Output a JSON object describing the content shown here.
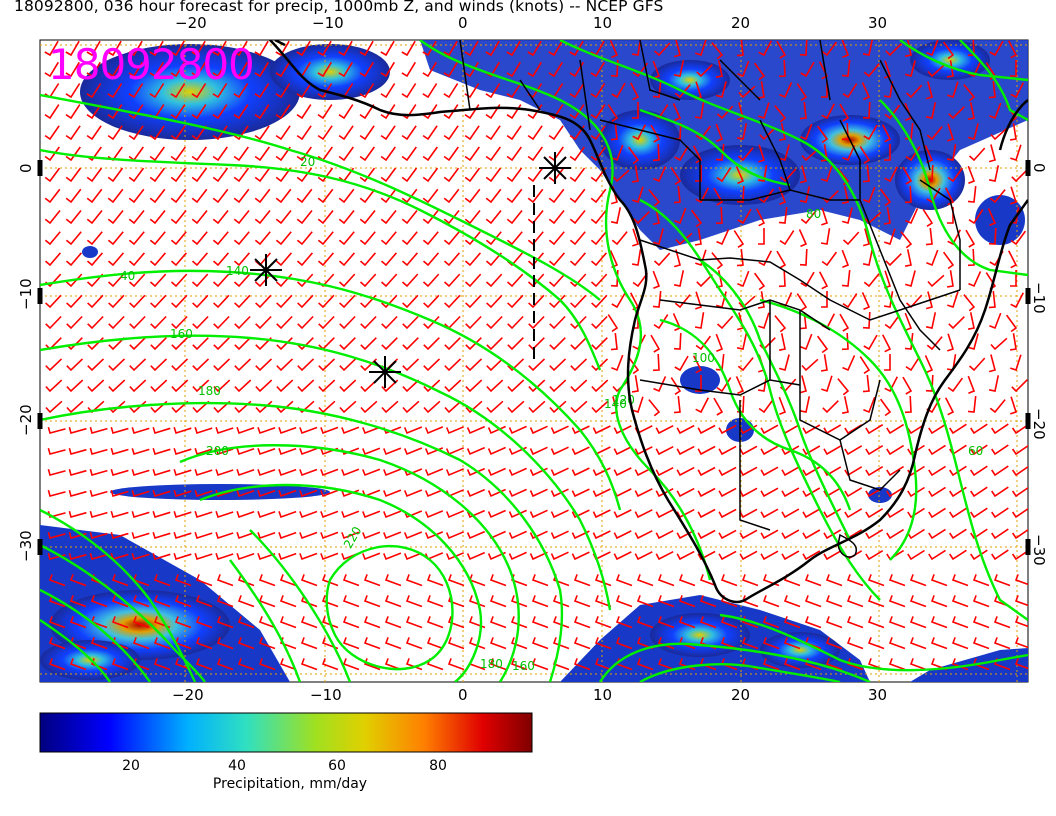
{
  "title": "18092800, 036 hour forecast for precip, 1000mb Z, and winds (knots) -- NCEP GFS",
  "date_stamp": "18092800",
  "map": {
    "lon_ticks": [
      "−20",
      "−10",
      "0",
      "10",
      "20",
      "30"
    ],
    "lat_ticks": [
      "0",
      "−10",
      "−20",
      "−30"
    ],
    "height_contours": [
      "20",
      "40",
      "140",
      "160",
      "180",
      "200",
      "220",
      "180",
      "160",
      "140",
      "120",
      "100",
      "80",
      "60"
    ],
    "colors": {
      "precip_high": "#7a0000",
      "precip_mid": "#f0e000",
      "precip_low": "#0000a0",
      "contour": "#00ee00",
      "wind_barb": "#ff0000",
      "graticule": "#e0a000",
      "coast": "#000000"
    }
  },
  "colorbar": {
    "label": "Precipitation, mm/day",
    "ticks": [
      "20",
      "40",
      "60",
      "80"
    ],
    "colors": [
      "#00007f",
      "#0000ff",
      "#00b0ff",
      "#30e0c0",
      "#a0e020",
      "#e0d000",
      "#ff8000",
      "#e00000",
      "#7f0000"
    ]
  }
}
